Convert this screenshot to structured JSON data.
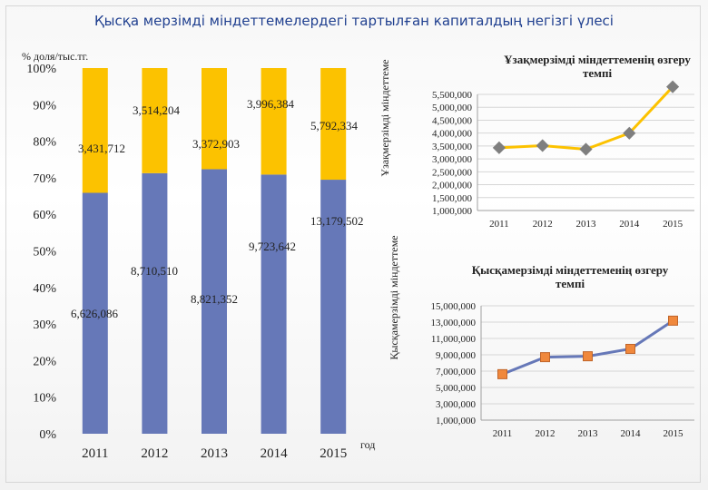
{
  "title": "Қысқа мерзімді міндеттемелердегі тартылған капиталдың негізгі үлесі",
  "chart_data": [
    {
      "type": "bar",
      "stacked": "percent",
      "ylabel_top": "% доля/тыс.тг.",
      "xlabel": "год",
      "categories": [
        "2011",
        "2012",
        "2013",
        "2014",
        "2015"
      ],
      "yticks": [
        "0%",
        "10%",
        "20%",
        "30%",
        "40%",
        "50%",
        "60%",
        "70%",
        "80%",
        "90%",
        "100%"
      ],
      "series": [
        {
          "name": "Қысқамерзімді міндеттеме",
          "color": "#6678b8",
          "values": [
            6626086,
            8710510,
            8821352,
            9723642,
            13179502
          ],
          "labels": [
            "6,626,086",
            "8,710,510",
            "8,821,352",
            "9,723,642",
            "13,179,502"
          ]
        },
        {
          "name": "Ұзақмерзімді міндеттеме",
          "color": "#fcc200",
          "values": [
            3431712,
            3514204,
            3372903,
            3996384,
            5792334
          ],
          "labels": [
            "3,431,712",
            "3,514,204",
            "3,372,903",
            "3,996,384",
            "5,792,334"
          ]
        }
      ]
    },
    {
      "type": "line",
      "title": "Ұзақмерзімді міндеттеменің өзгеру темпі",
      "x": [
        "2011",
        "2012",
        "2013",
        "2014",
        "2015"
      ],
      "values": [
        3431712,
        3514204,
        3372903,
        3996384,
        5792334
      ],
      "ylim": [
        1000000,
        5500000
      ],
      "yticks": [
        "1,000,000",
        "1,500,000",
        "2,000,000",
        "2,500,000",
        "3,000,000",
        "3,500,000",
        "4,000,000",
        "4,500,000",
        "5,000,000",
        "5,500,000"
      ],
      "line_color": "#fcc200",
      "marker_color": "#7f7f7f"
    },
    {
      "type": "line",
      "title": "Қысқамерзімді міндеттеменің өзгеру темпі",
      "x": [
        "2011",
        "2012",
        "2013",
        "2014",
        "2015"
      ],
      "values": [
        6626086,
        8710510,
        8821352,
        9723642,
        13179502
      ],
      "ylim": [
        1000000,
        15000000
      ],
      "yticks": [
        "1,000,000",
        "3,000,000",
        "5,000,000",
        "7,000,000",
        "9,000,000",
        "11,000,000",
        "13,000,000",
        "15,000,000"
      ],
      "line_color": "#6678b8",
      "marker_color": "#f0883c"
    }
  ]
}
